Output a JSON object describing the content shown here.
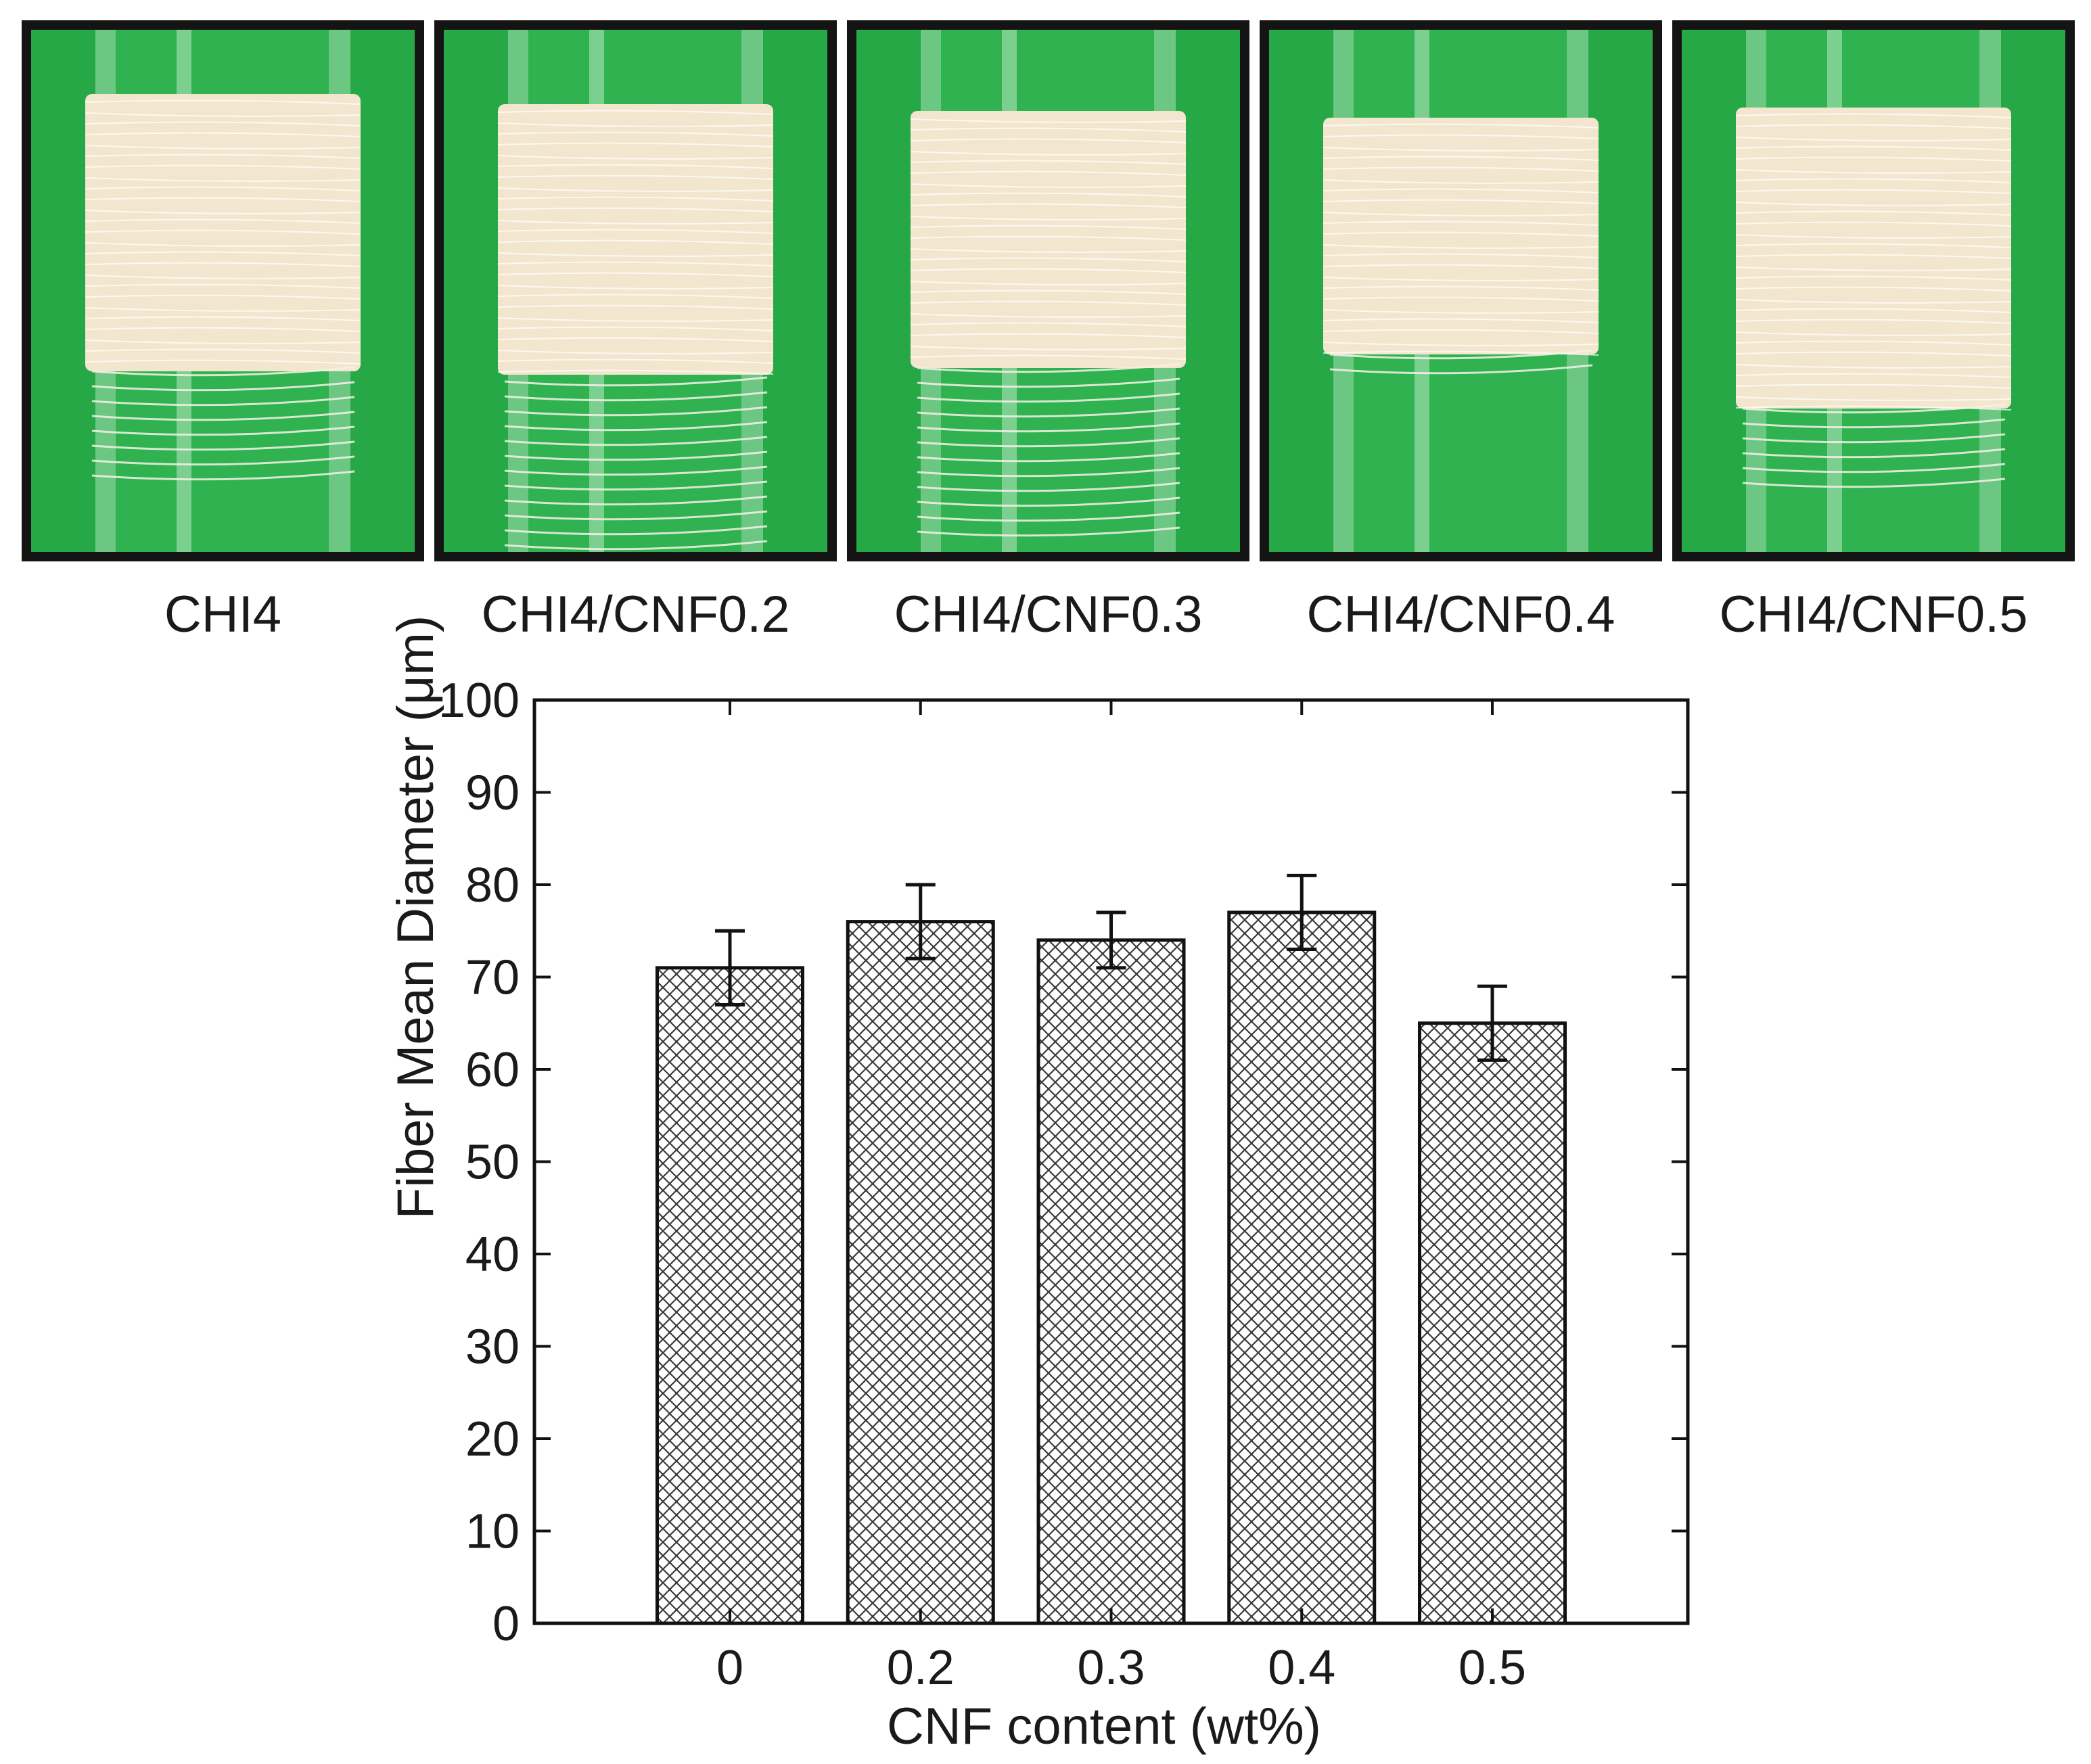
{
  "photos": [
    {
      "label": "CHI4"
    },
    {
      "label": "CHI4/CNF0.2"
    },
    {
      "label": "CHI4/CNF0.3"
    },
    {
      "label": "CHI4/CNF0.4"
    },
    {
      "label": "CHI4/CNF0.5"
    }
  ],
  "chart_data": {
    "type": "bar",
    "categories": [
      "0",
      "0.2",
      "0.3",
      "0.4",
      "0.5"
    ],
    "values": [
      71,
      76,
      74,
      77,
      65
    ],
    "errors": [
      4,
      4,
      3,
      4,
      4
    ],
    "xlabel": "CNF content (wt%)",
    "ylabel": "Fiber Mean Diameter (μm)",
    "ylim": [
      0,
      100
    ],
    "yticks": [
      0,
      10,
      20,
      30,
      40,
      50,
      60,
      70,
      80,
      90,
      100
    ],
    "bar_fill": "crosshatch",
    "grid": false,
    "colors": {
      "tube_green": "#2fb24f",
      "fiber": "#f3e6cf",
      "frame": "#141414"
    }
  }
}
